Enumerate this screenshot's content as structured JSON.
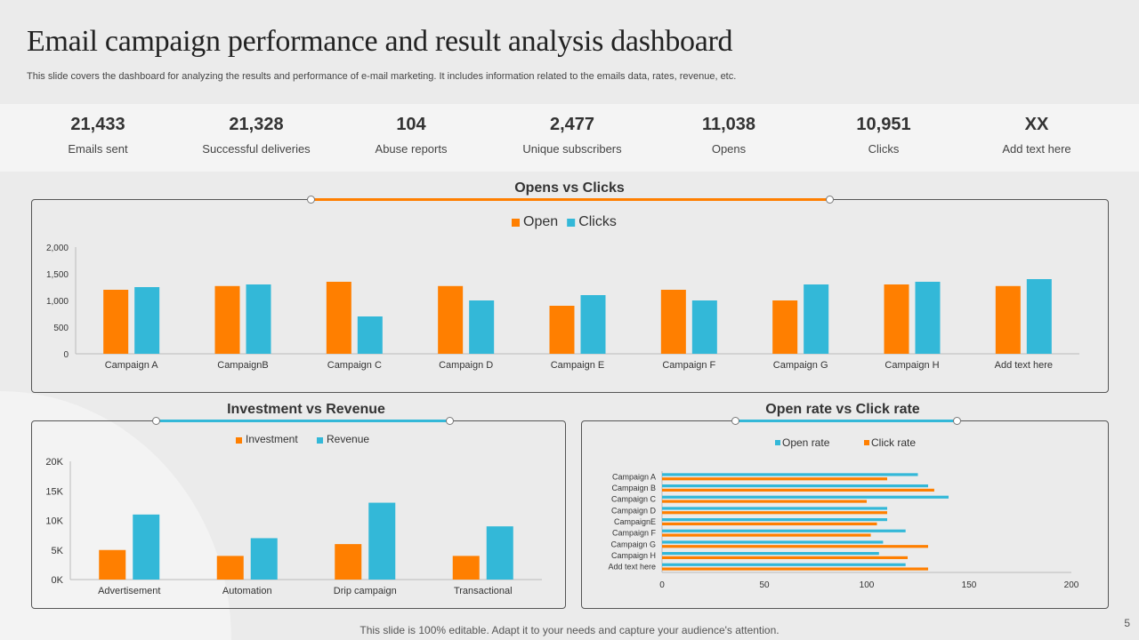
{
  "header": {
    "title": "Email campaign performance and result analysis dashboard",
    "subtitle": "This slide covers the dashboard for analyzing the results and performance of e-mail marketing. It includes information related to the emails data, rates, revenue, etc."
  },
  "kpis": [
    {
      "value": "21,433",
      "label": "Emails sent"
    },
    {
      "value": "21,328",
      "label": "Successful deliveries"
    },
    {
      "value": "104",
      "label": "Abuse reports"
    },
    {
      "value": "2,477",
      "label": "Unique  subscribers"
    },
    {
      "value": "11,038",
      "label": "Opens"
    },
    {
      "value": "10,951",
      "label": "Clicks"
    },
    {
      "value": "XX",
      "label": "Add text here"
    }
  ],
  "colors": {
    "orange": "#ff7f00",
    "blue": "#33b8d8",
    "accentLine": "#ff7f00",
    "accentLine2": "#33b8d8"
  },
  "chart_data": [
    {
      "type": "bar",
      "title": "Opens vs Clicks",
      "categories": [
        "Campaign A",
        "CampaignB",
        "Campaign C",
        "Campaign D",
        "Campaign E",
        "Campaign F",
        "Campaign G",
        "Campaign H",
        "Add text here"
      ],
      "series": [
        {
          "name": "Open",
          "values": [
            1200,
            1270,
            1350,
            1270,
            900,
            1200,
            1000,
            1300,
            1270
          ]
        },
        {
          "name": "Clicks",
          "values": [
            1250,
            1300,
            700,
            1000,
            1100,
            1000,
            1300,
            1350,
            1400
          ]
        }
      ],
      "yticks": [
        "0",
        "500",
        "1,000",
        "1,500",
        "2,000"
      ],
      "ylim": [
        0,
        2000
      ],
      "legend": "top-center"
    },
    {
      "type": "bar",
      "title": "Investment vs Revenue",
      "categories": [
        "Advertisement",
        "Automation",
        "Drip campaign",
        "Transactional"
      ],
      "series": [
        {
          "name": "Investment",
          "values": [
            5000,
            4000,
            6000,
            4000
          ]
        },
        {
          "name": "Revenue",
          "values": [
            11000,
            7000,
            13000,
            9000
          ]
        }
      ],
      "yticks": [
        "0K",
        "5K",
        "10K",
        "15K",
        "20K"
      ],
      "ylim": [
        0,
        20000
      ],
      "legend": "top-center"
    },
    {
      "type": "bar",
      "orientation": "horizontal",
      "title": "Open rate vs Click rate",
      "categories": [
        "Campaign A",
        "Campaign B",
        "Campaign C",
        "Campaign D",
        "CampaignE",
        "Campaign F",
        "Campaign G",
        "Campaign H",
        "Add text here"
      ],
      "series": [
        {
          "name": "Open rate",
          "values": [
            125,
            130,
            140,
            110,
            110,
            119,
            108,
            106,
            119
          ]
        },
        {
          "name": "Click rate",
          "values": [
            110,
            133,
            100,
            110,
            105,
            102,
            130,
            120,
            130
          ]
        }
      ],
      "xticks": [
        "0",
        "50",
        "100",
        "150",
        "200"
      ],
      "xlim": [
        0,
        200
      ],
      "legend": "top-center"
    }
  ],
  "footer": {
    "text": "This slide is 100% editable. Adapt it to your needs and capture your audience's attention.",
    "page": "5"
  }
}
